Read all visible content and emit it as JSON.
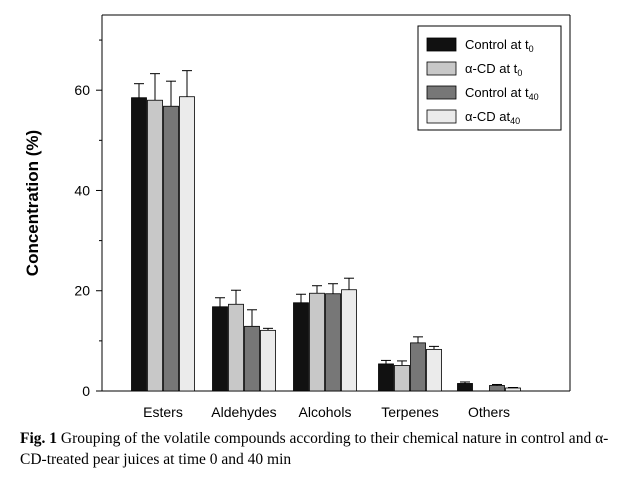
{
  "chart_data": {
    "type": "bar",
    "title": "",
    "xlabel": "",
    "ylabel": "Concentration (%)",
    "ylim": [
      0,
      75
    ],
    "yticks": [
      0,
      20,
      40,
      60
    ],
    "categories": [
      "Esters",
      "Aldehydes",
      "Alcohols",
      "Terpenes",
      "Others"
    ],
    "series": [
      {
        "name": "Control at t",
        "sub": "0",
        "color": "#111111",
        "values": [
          58.5,
          16.8,
          17.6,
          5.4,
          1.5
        ],
        "errors": [
          2.8,
          1.8,
          1.7,
          0.7,
          0.3
        ]
      },
      {
        "name": "α-CD at t",
        "sub": "0",
        "color": "#c8c8c8",
        "values": [
          58.0,
          17.3,
          19.5,
          5.1,
          0.0
        ],
        "errors": [
          5.3,
          2.8,
          1.5,
          0.9,
          0.0
        ]
      },
      {
        "name": "Control at t",
        "sub": "40",
        "color": "#777777",
        "values": [
          56.8,
          12.9,
          19.4,
          9.6,
          1.1
        ],
        "errors": [
          5.0,
          3.3,
          2.0,
          1.2,
          0.2
        ]
      },
      {
        "name": "α-CD at",
        "sub": "40",
        "color": "#ebebeb",
        "values": [
          58.7,
          12.1,
          20.2,
          8.3,
          0.6
        ],
        "errors": [
          5.2,
          0.4,
          2.3,
          0.6,
          0.1
        ]
      }
    ],
    "legend_position": "top-right",
    "grid": false
  },
  "caption": {
    "label": "Fig. 1",
    "text": "Grouping of the volatile compounds according to their chemical nature in control and α-CD-treated pear juices at time 0 and 40 min"
  }
}
